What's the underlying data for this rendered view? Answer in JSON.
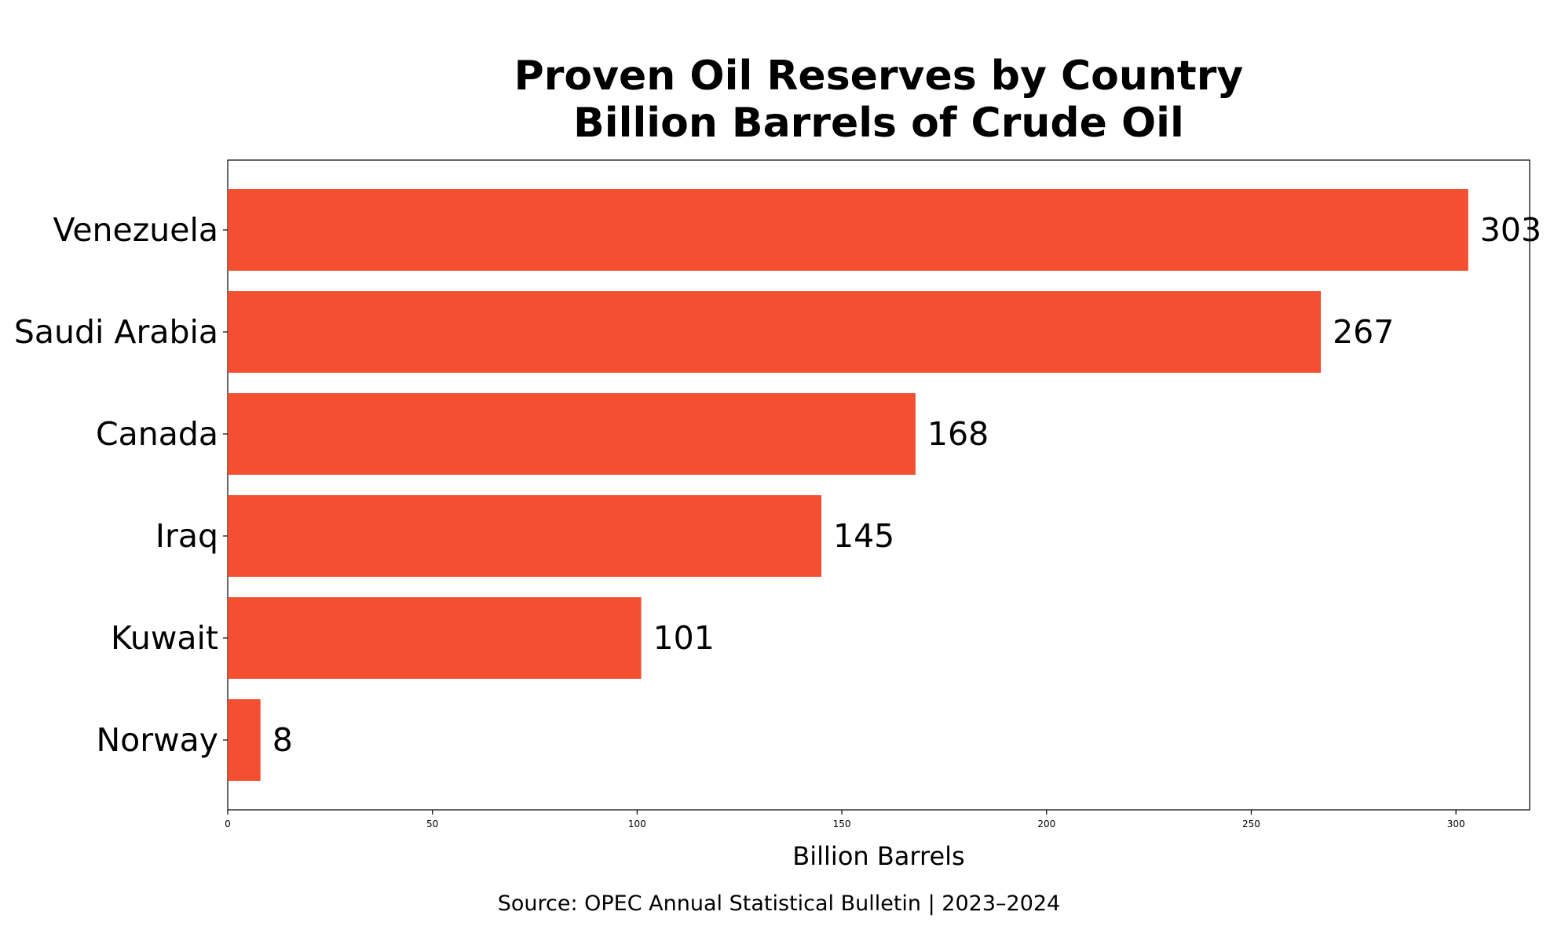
{
  "chart_data": {
    "type": "bar",
    "orientation": "horizontal",
    "title_lines": [
      "Proven Oil Reserves by Country",
      "Billion Barrels of Crude Oil"
    ],
    "categories": [
      "Venezuela",
      "Saudi Arabia",
      "Canada",
      "Iraq",
      "Kuwait",
      "Norway"
    ],
    "values": [
      303,
      267,
      168,
      145,
      101,
      8
    ],
    "value_labels": [
      "303",
      "267",
      "168",
      "145",
      "101",
      "8"
    ],
    "xlabel": "Billion Barrels",
    "ylabel": "",
    "xlim": [
      0,
      318
    ],
    "xticks": [
      0,
      50,
      100,
      150,
      200,
      250,
      300
    ],
    "grid": false,
    "legend": "none",
    "bar_color": "#f44f30",
    "source": "Source: OPEC Annual Statistical Bulletin | 2023–2024"
  }
}
